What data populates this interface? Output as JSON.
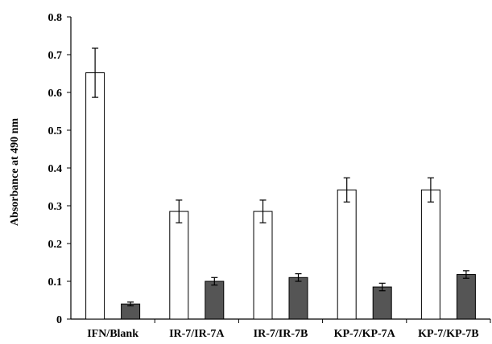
{
  "chart_data": {
    "type": "bar",
    "title": "",
    "xlabel": "",
    "ylabel": "Absorbance at 490 nm",
    "ylim": [
      0,
      0.8
    ],
    "yticks": [
      "0",
      "0.1",
      "0.2",
      "0.3",
      "0.4",
      "0.5",
      "0.6",
      "0.7",
      "0.8"
    ],
    "categories": [
      "IFN/Blank",
      "IR-7/IR-7A",
      "IR-7/IR-7B",
      "KP-7/KP-7A",
      "KP-7/KP-7B"
    ],
    "series": [
      {
        "color": "#ffffff",
        "values": [
          0.652,
          0.285,
          0.285,
          0.342,
          0.342
        ],
        "errors": [
          0.065,
          0.03,
          0.03,
          0.032,
          0.032
        ]
      },
      {
        "color": "#555555",
        "values": [
          0.04,
          0.1,
          0.11,
          0.085,
          0.118
        ],
        "errors": [
          0.005,
          0.01,
          0.01,
          0.01,
          0.01
        ]
      }
    ],
    "grid": false,
    "legend": "none",
    "error_bars": true
  }
}
